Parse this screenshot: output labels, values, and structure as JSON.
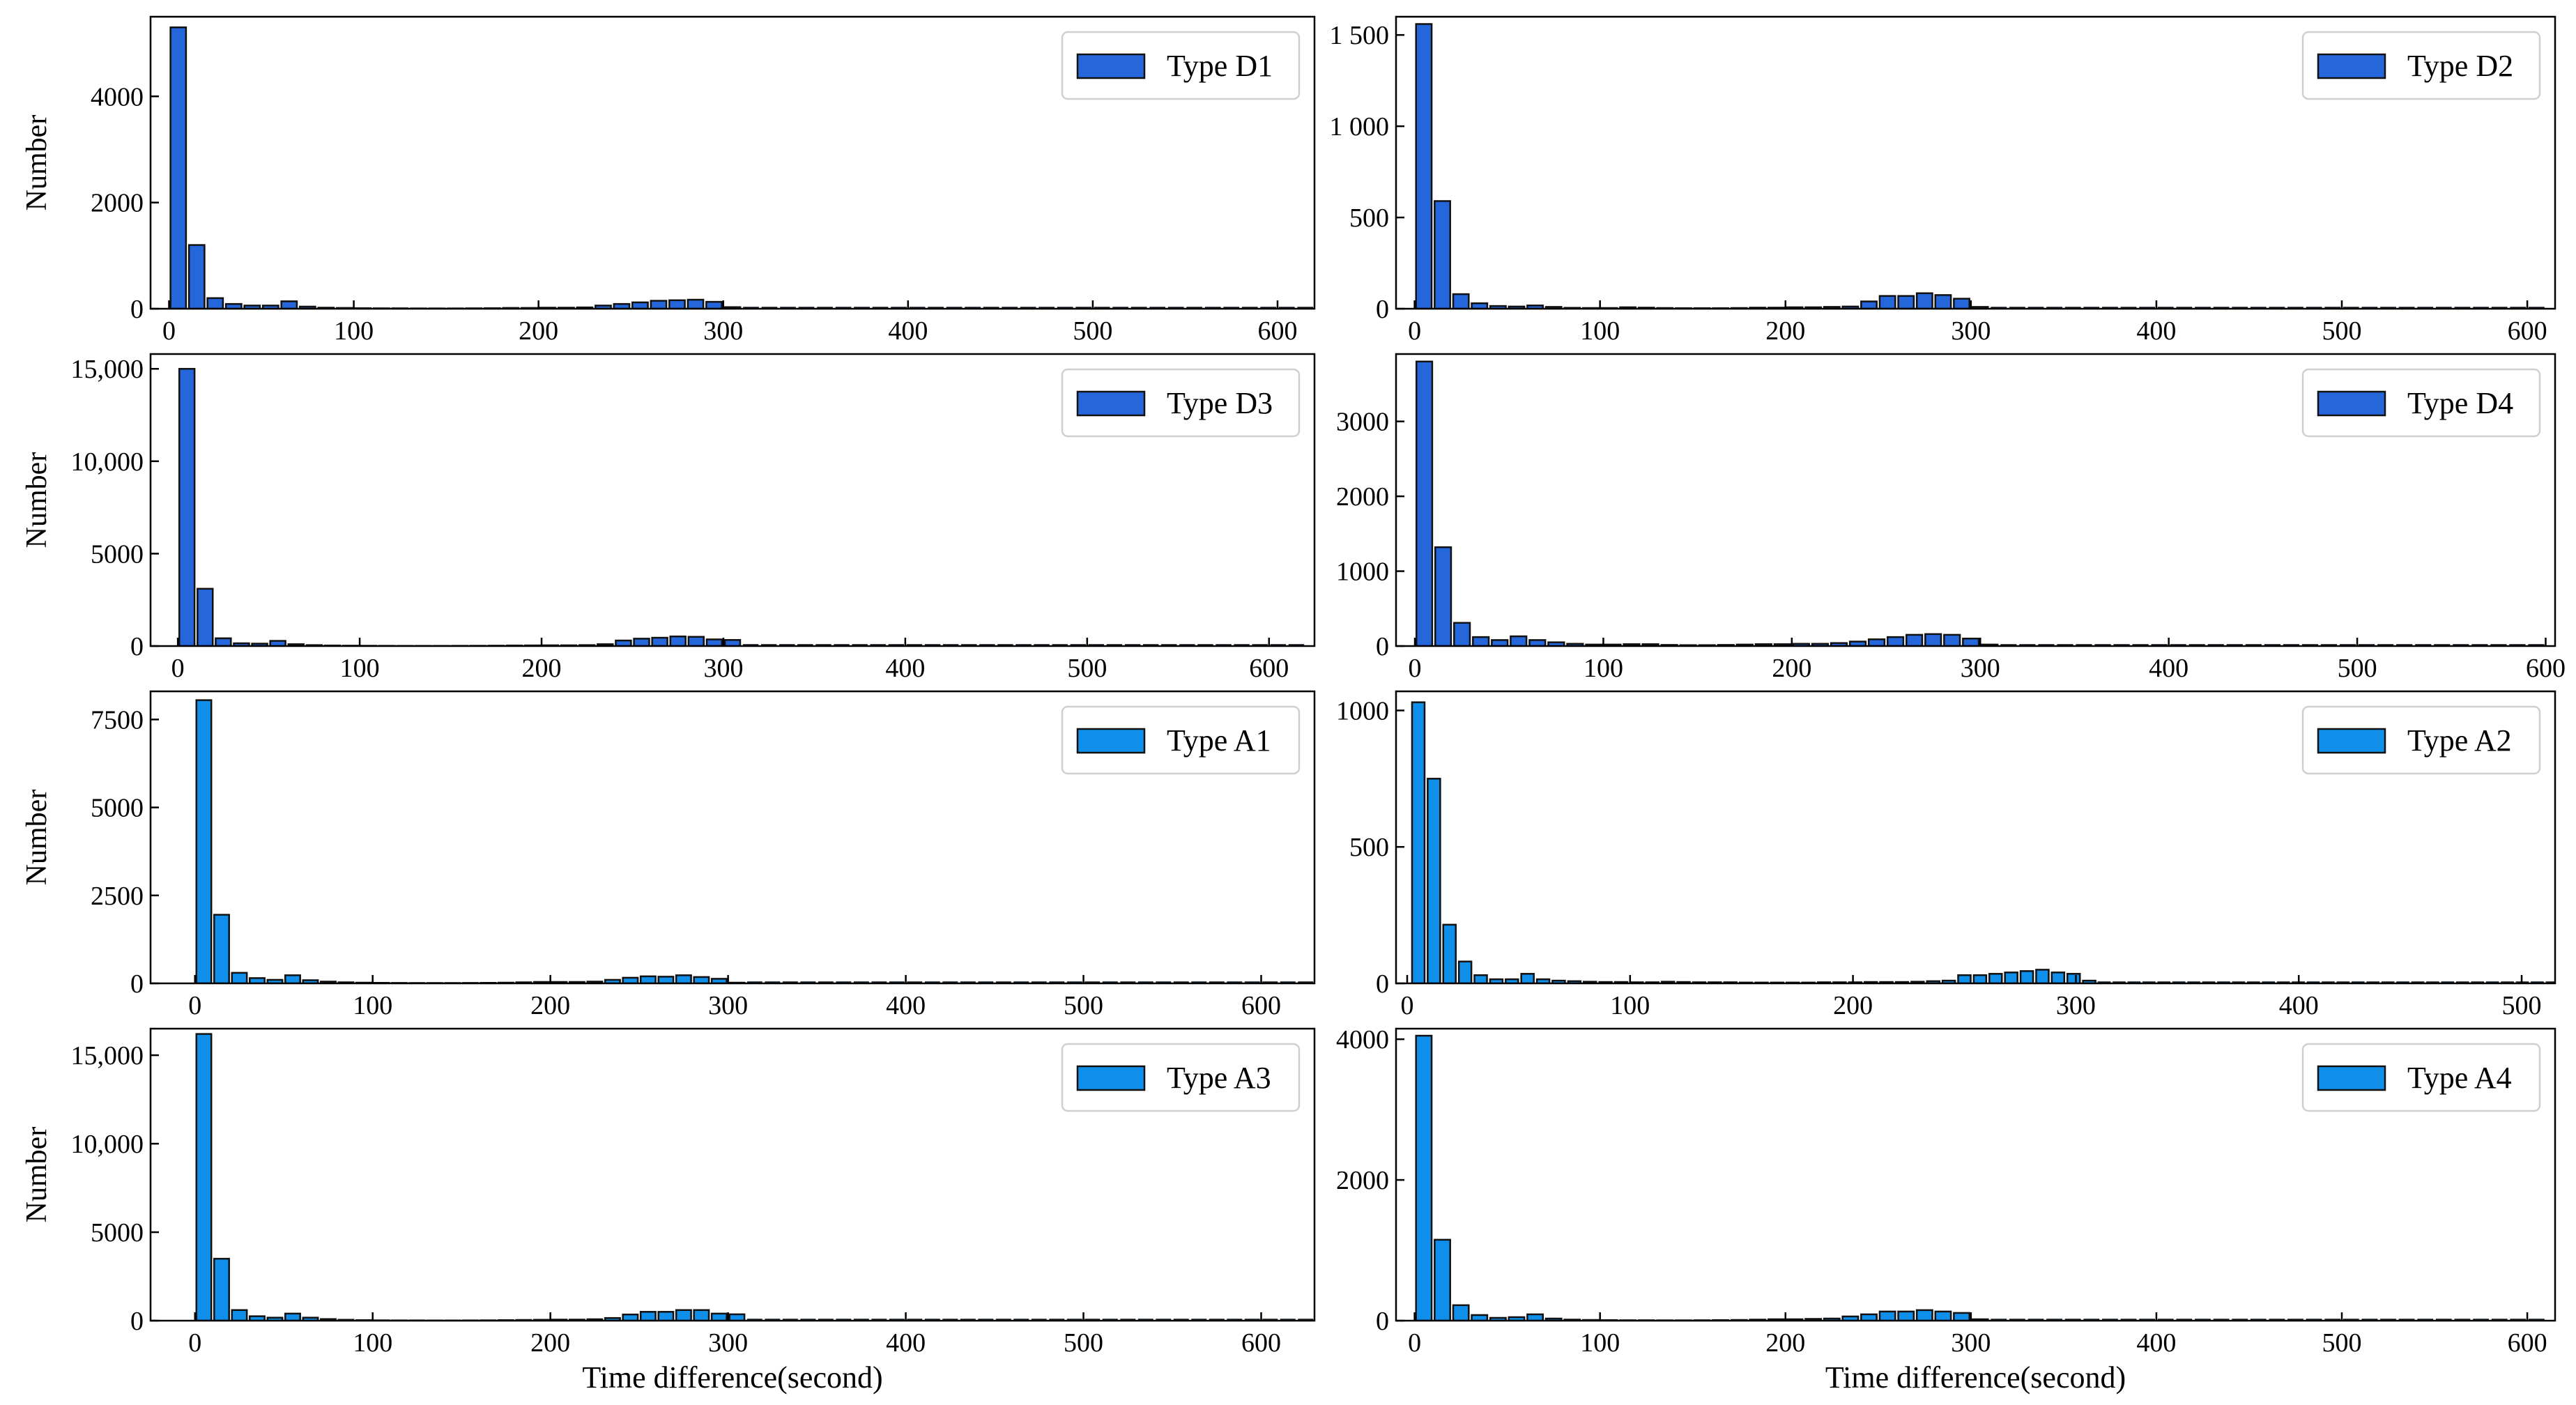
{
  "figure": {
    "xlabel": "Time difference(second)",
    "ylabel": "Number"
  },
  "colors": {
    "type_d": "#2566DB",
    "type_a": "#0F8FEA",
    "edge": "#111111"
  },
  "chart_data": [
    {
      "type": "bar",
      "legend": "Type D1",
      "color_key": "type_d",
      "xlim": [
        -10,
        620
      ],
      "ylim": [
        0,
        5500
      ],
      "xticks": [
        0,
        100,
        200,
        300,
        400,
        500,
        600
      ],
      "xtick_labels": [
        "0",
        "100",
        "200",
        "300",
        "400",
        "500",
        "600"
      ],
      "yticks": [
        0,
        2000,
        4000
      ],
      "ytick_labels": [
        "0",
        "2000",
        "4000"
      ],
      "ylabel": "Number",
      "xlabel": "",
      "bin_width": 10,
      "x": [
        5,
        15,
        25,
        35,
        45,
        55,
        65,
        75,
        85,
        95,
        105,
        115,
        125,
        135,
        145,
        155,
        165,
        175,
        185,
        195,
        205,
        215,
        225,
        235,
        245,
        255,
        265,
        275,
        285,
        295,
        305
      ],
      "values": [
        5300,
        1200,
        200,
        90,
        60,
        60,
        140,
        40,
        20,
        15,
        10,
        8,
        8,
        6,
        6,
        6,
        8,
        10,
        15,
        15,
        20,
        20,
        25,
        60,
        90,
        120,
        150,
        160,
        170,
        130,
        30
      ]
    },
    {
      "type": "bar",
      "legend": "Type D2",
      "color_key": "type_d",
      "xlim": [
        -10,
        615
      ],
      "ylim": [
        0,
        1600
      ],
      "xticks": [
        0,
        100,
        200,
        300,
        400,
        500,
        600
      ],
      "xtick_labels": [
        "0",
        "100",
        "200",
        "300",
        "400",
        "500",
        "600"
      ],
      "yticks": [
        0,
        500,
        1000,
        1500
      ],
      "ytick_labels": [
        "0",
        "500",
        "1 000",
        "1 500"
      ],
      "ylabel": "",
      "xlabel": "",
      "bin_width": 10,
      "x": [
        5,
        15,
        25,
        35,
        45,
        55,
        65,
        75,
        85,
        95,
        105,
        115,
        125,
        135,
        145,
        155,
        165,
        175,
        185,
        195,
        205,
        215,
        225,
        235,
        245,
        255,
        265,
        275,
        285,
        295,
        305
      ],
      "values": [
        1560,
        590,
        80,
        30,
        15,
        12,
        18,
        10,
        5,
        4,
        4,
        8,
        6,
        4,
        3,
        3,
        3,
        4,
        6,
        6,
        8,
        8,
        10,
        12,
        40,
        70,
        70,
        85,
        75,
        55,
        10
      ]
    },
    {
      "type": "bar",
      "legend": "Type D3",
      "color_key": "type_d",
      "xlim": [
        -15,
        625
      ],
      "ylim": [
        0,
        15800
      ],
      "xticks": [
        0,
        100,
        200,
        300,
        400,
        500,
        600
      ],
      "xtick_labels": [
        "0",
        "100",
        "200",
        "300",
        "400",
        "500",
        "600"
      ],
      "yticks": [
        0,
        5000,
        10000,
        15000
      ],
      "ytick_labels": [
        "0",
        "5000",
        "10,000",
        "15,000"
      ],
      "ylabel": "Number",
      "xlabel": "",
      "bin_width": 10,
      "x": [
        5,
        15,
        25,
        35,
        45,
        55,
        65,
        75,
        85,
        95,
        105,
        115,
        125,
        135,
        145,
        155,
        165,
        175,
        185,
        195,
        205,
        215,
        225,
        235,
        245,
        255,
        265,
        275,
        285,
        295,
        305
      ],
      "values": [
        15000,
        3100,
        420,
        150,
        130,
        280,
        100,
        50,
        30,
        20,
        15,
        12,
        10,
        10,
        10,
        12,
        15,
        20,
        30,
        35,
        40,
        40,
        50,
        100,
        300,
        400,
        450,
        520,
        500,
        360,
        330
      ]
    },
    {
      "type": "bar",
      "legend": "Type D4",
      "color_key": "type_d",
      "xlim": [
        -10,
        605
      ],
      "ylim": [
        0,
        3900
      ],
      "xticks": [
        0,
        100,
        200,
        300,
        400,
        500,
        600
      ],
      "xtick_labels": [
        "0",
        "100",
        "200",
        "300",
        "400",
        "500",
        "600"
      ],
      "yticks": [
        0,
        1000,
        2000,
        3000
      ],
      "ytick_labels": [
        "0",
        "1000",
        "2000",
        "3000"
      ],
      "ylabel": "",
      "xlabel": "",
      "bin_width": 10,
      "x": [
        5,
        15,
        25,
        35,
        45,
        55,
        65,
        75,
        85,
        95,
        105,
        115,
        125,
        135,
        145,
        155,
        165,
        175,
        185,
        195,
        205,
        215,
        225,
        235,
        245,
        255,
        265,
        275,
        285,
        295,
        305
      ],
      "values": [
        3800,
        1320,
        310,
        120,
        80,
        130,
        80,
        50,
        30,
        20,
        20,
        25,
        25,
        15,
        12,
        12,
        15,
        20,
        25,
        25,
        30,
        30,
        40,
        60,
        90,
        120,
        150,
        160,
        150,
        100,
        20
      ]
    },
    {
      "type": "bar",
      "legend": "Type A1",
      "color_key": "type_a",
      "xlim": [
        -25,
        630
      ],
      "ylim": [
        0,
        8300
      ],
      "xticks": [
        0,
        100,
        200,
        300,
        400,
        500,
        600
      ],
      "xtick_labels": [
        "0",
        "100",
        "200",
        "300",
        "400",
        "500",
        "600"
      ],
      "yticks": [
        0,
        2500,
        5000,
        7500
      ],
      "ytick_labels": [
        "0",
        "2500",
        "5000",
        "7500"
      ],
      "ylabel": "Number",
      "xlabel": "",
      "bin_width": 10,
      "x": [
        5,
        15,
        25,
        35,
        45,
        55,
        65,
        75,
        85,
        95,
        105,
        115,
        125,
        135,
        145,
        155,
        165,
        175,
        185,
        195,
        205,
        215,
        225,
        235,
        245,
        255,
        265,
        275,
        285,
        295,
        305
      ],
      "values": [
        8050,
        1950,
        300,
        150,
        100,
        230,
        90,
        50,
        30,
        20,
        15,
        12,
        10,
        10,
        10,
        12,
        15,
        20,
        30,
        40,
        40,
        40,
        50,
        100,
        160,
        200,
        190,
        230,
        180,
        130,
        20
      ]
    },
    {
      "type": "bar",
      "legend": "Type A2",
      "color_key": "type_a",
      "xlim": [
        -5,
        515
      ],
      "ylim": [
        0,
        1070
      ],
      "xticks": [
        0,
        100,
        200,
        300,
        400,
        500
      ],
      "xtick_labels": [
        "0",
        "100",
        "200",
        "300",
        "400",
        "500"
      ],
      "yticks": [
        0,
        500,
        1000
      ],
      "ytick_labels": [
        "0",
        "500",
        "1000"
      ],
      "ylabel": "",
      "xlabel": "",
      "bin_width": 6.7,
      "x": [
        5,
        12,
        19,
        26,
        33,
        40,
        47,
        54,
        61,
        68,
        75,
        82,
        89,
        96,
        103,
        110,
        117,
        124,
        131,
        138,
        145,
        152,
        159,
        166,
        173,
        180,
        187,
        194,
        201,
        208,
        215,
        222,
        229,
        236,
        243,
        250,
        257,
        264,
        271,
        278,
        285,
        292,
        299,
        306
      ],
      "values": [
        1030,
        750,
        215,
        80,
        30,
        15,
        15,
        35,
        15,
        10,
        8,
        6,
        5,
        5,
        4,
        4,
        6,
        5,
        4,
        4,
        4,
        3,
        3,
        3,
        3,
        3,
        4,
        4,
        4,
        5,
        5,
        5,
        6,
        8,
        10,
        30,
        30,
        35,
        40,
        45,
        50,
        40,
        35,
        10
      ]
    },
    {
      "type": "bar",
      "legend": "Type A3",
      "color_key": "type_a",
      "xlim": [
        -25,
        630
      ],
      "ylim": [
        0,
        16500
      ],
      "xticks": [
        0,
        100,
        200,
        300,
        400,
        500,
        600
      ],
      "xtick_labels": [
        "0",
        "100",
        "200",
        "300",
        "400",
        "500",
        "600"
      ],
      "yticks": [
        0,
        5000,
        10000,
        15000
      ],
      "ytick_labels": [
        "0",
        "5000",
        "10,000",
        "15,000"
      ],
      "ylabel": "Number",
      "xlabel": "Time difference(second)",
      "bin_width": 10,
      "x": [
        5,
        15,
        25,
        35,
        45,
        55,
        65,
        75,
        85,
        95,
        105,
        115,
        125,
        135,
        145,
        155,
        165,
        175,
        185,
        195,
        205,
        215,
        225,
        235,
        245,
        255,
        265,
        275,
        285,
        295,
        305
      ],
      "values": [
        16200,
        3500,
        600,
        250,
        170,
        400,
        170,
        90,
        50,
        30,
        20,
        15,
        15,
        12,
        12,
        15,
        20,
        30,
        40,
        50,
        60,
        60,
        80,
        150,
        350,
        500,
        500,
        600,
        600,
        400,
        360
      ]
    },
    {
      "type": "bar",
      "legend": "Type A4",
      "color_key": "type_a",
      "xlim": [
        -10,
        615
      ],
      "ylim": [
        0,
        4150
      ],
      "xticks": [
        0,
        100,
        200,
        300,
        400,
        500,
        600
      ],
      "xtick_labels": [
        "0",
        "100",
        "200",
        "300",
        "400",
        "500",
        "600"
      ],
      "yticks": [
        0,
        2000,
        4000
      ],
      "ytick_labels": [
        "0",
        "2000",
        "4000"
      ],
      "ylabel": "",
      "xlabel": "Time difference(second)",
      "bin_width": 10,
      "x": [
        5,
        15,
        25,
        35,
        45,
        55,
        65,
        75,
        85,
        95,
        105,
        115,
        125,
        135,
        145,
        155,
        165,
        175,
        185,
        195,
        205,
        215,
        225,
        235,
        245,
        255,
        265,
        275,
        285,
        295,
        305
      ],
      "values": [
        4050,
        1150,
        220,
        80,
        40,
        50,
        90,
        30,
        15,
        10,
        8,
        6,
        6,
        5,
        5,
        6,
        8,
        10,
        15,
        20,
        20,
        25,
        30,
        60,
        90,
        130,
        130,
        150,
        130,
        110,
        20
      ]
    }
  ]
}
